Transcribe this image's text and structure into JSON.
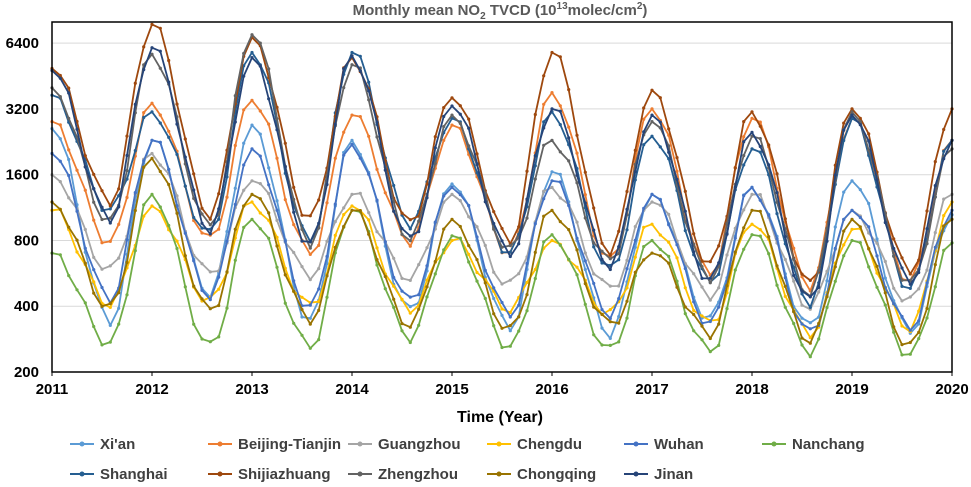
{
  "chart_data": {
    "type": "line",
    "title_main": "Monthly mean NO",
    "title_sub": "2",
    "title_mid": " TVCD (10",
    "title_sup1": "13",
    "title_unit": "molec/cm",
    "title_sup2": "2",
    "title_end": ")",
    "xlabel": "Time (Year)",
    "ylabel": "",
    "y_scale": "log2",
    "ylim": [
      200,
      8000
    ],
    "y_ticks": [
      200,
      400,
      800,
      1600,
      3200,
      6400
    ],
    "y_tick_labels": [
      "200",
      "400",
      "800",
      "1600",
      "3200",
      "6400"
    ],
    "x_start_year": 2011,
    "x_ticks": [
      "2011",
      "2012",
      "2013",
      "2014",
      "2015",
      "2016",
      "2017",
      "2018",
      "2019",
      "2020"
    ],
    "months_per_year": 12,
    "gridlines": "horizontal",
    "legend_position": "bottom",
    "series": [
      {
        "name": "Xi'an",
        "color": "#5b9bd5",
        "peaks": [
          2600,
          2300,
          2700,
          2300,
          1450,
          1650,
          1300,
          1400,
          1500,
          1050
        ],
        "troughs": [
          340,
          460,
          340,
          380,
          320,
          300,
          350,
          320,
          310
        ]
      },
      {
        "name": "Beijing-Tianjin",
        "color": "#ed7d31",
        "peaks": [
          2800,
          3400,
          3500,
          3000,
          2700,
          3800,
          3200,
          2900,
          2900,
          2300
        ],
        "troughs": [
          780,
          800,
          700,
          800,
          700,
          640,
          560,
          500,
          520
        ]
      },
      {
        "name": "Guangzhou",
        "color": "#a5a5a5",
        "peaks": [
          1600,
          2000,
          1500,
          1300,
          1300,
          1400,
          1200,
          1300,
          1100,
          1300
        ],
        "troughs": [
          580,
          560,
          560,
          540,
          500,
          480,
          450,
          400,
          420
        ]
      },
      {
        "name": "Chengdu",
        "color": "#ffc000",
        "peaks": [
          1100,
          1150,
          1200,
          1150,
          800,
          800,
          950,
          950,
          900,
          1200
        ],
        "troughs": [
          410,
          420,
          400,
          390,
          390,
          370,
          330,
          300,
          320
        ]
      },
      {
        "name": "Wuhan",
        "color": "#4472c4",
        "peaks": [
          2000,
          2300,
          2100,
          2200,
          1400,
          1500,
          1300,
          1400,
          1100,
          1100
        ],
        "troughs": [
          430,
          450,
          390,
          420,
          370,
          370,
          330,
          300,
          320
        ]
      },
      {
        "name": "Nanchang",
        "color": "#70ad47",
        "peaks": [
          700,
          1300,
          1000,
          1100,
          840,
          850,
          800,
          850,
          800,
          780
        ],
        "troughs": [
          270,
          260,
          260,
          290,
          260,
          250,
          250,
          250,
          240
        ]
      },
      {
        "name": "Shanghai",
        "color": "#255e91",
        "peaks": [
          3700,
          3100,
          5800,
          5800,
          2900,
          3100,
          2400,
          2100,
          2900,
          2300
        ],
        "troughs": [
          1100,
          850,
          800,
          960,
          700,
          580,
          520,
          420,
          480
        ]
      },
      {
        "name": "Shijiazhuang",
        "color": "#9e480e",
        "peaks": [
          4900,
          7800,
          6800,
          5500,
          3600,
          5800,
          3900,
          3100,
          3200,
          3200
        ],
        "troughs": [
          1200,
          1050,
          1000,
          950,
          800,
          720,
          620,
          500,
          580
        ]
      },
      {
        "name": "Zhengzhou",
        "color": "#636363",
        "peaks": [
          4000,
          5700,
          7000,
          5100,
          3000,
          2300,
          2800,
          2400,
          3100,
          2100
        ],
        "troughs": [
          960,
          920,
          780,
          820,
          720,
          640,
          540,
          460,
          500
        ]
      },
      {
        "name": "Chongqing",
        "color": "#997300",
        "peaks": [
          1200,
          1900,
          1300,
          1100,
          1000,
          1100,
          700,
          1100,
          1000,
          1000
        ],
        "troughs": [
          390,
          380,
          350,
          330,
          310,
          330,
          300,
          280,
          260
        ]
      },
      {
        "name": "Jinan",
        "color": "#264478",
        "peaks": [
          4800,
          6100,
          5500,
          5600,
          3300,
          3200,
          3000,
          2500,
          3000,
          2300
        ],
        "troughs": [
          1000,
          900,
          760,
          800,
          700,
          620,
          520,
          420,
          520
        ]
      }
    ]
  }
}
